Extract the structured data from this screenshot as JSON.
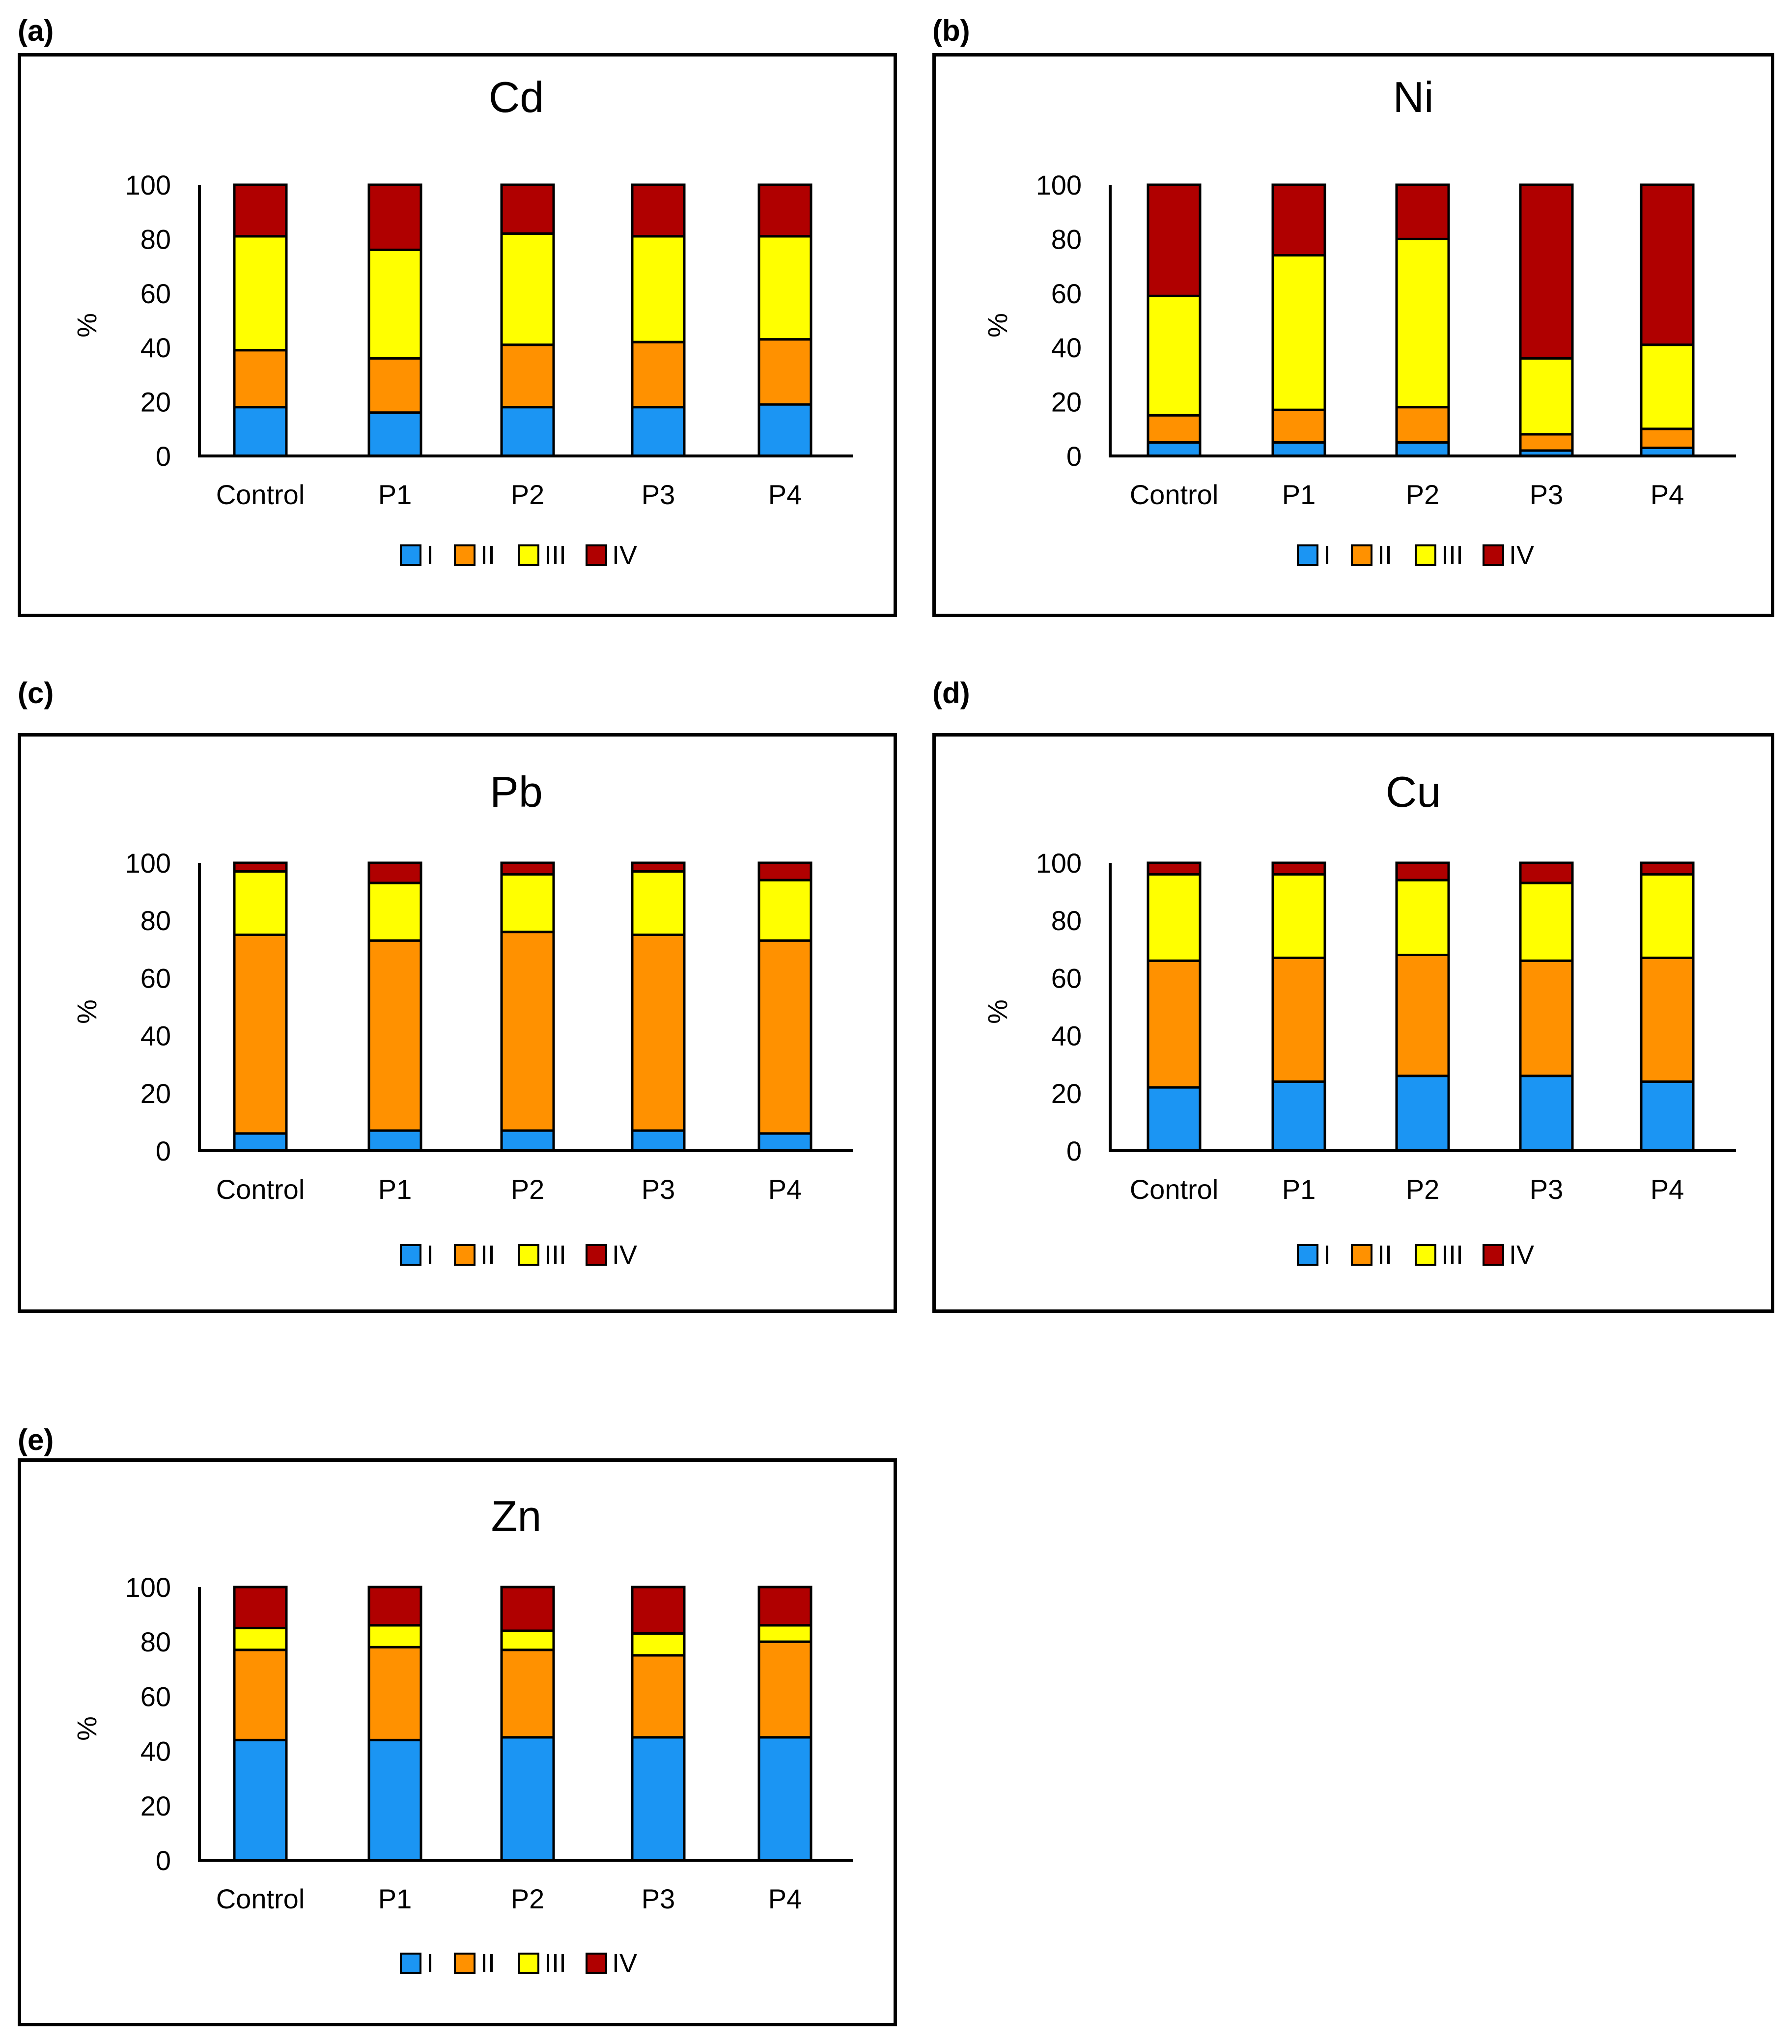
{
  "colors": {
    "I": "#1b95f3",
    "II": "#ff9100",
    "III": "#ffff00",
    "IV": "#b00000",
    "axis": "#000000"
  },
  "chart_data": [
    {
      "panel": "(a)",
      "type": "stacked-bar",
      "title": "Cd",
      "ylabel": "%",
      "ylim": [
        0,
        100
      ],
      "yticks": [
        0,
        20,
        40,
        60,
        80,
        100
      ],
      "categories": [
        "Control",
        "P1",
        "P2",
        "P3",
        "P4"
      ],
      "series": [
        {
          "name": "I",
          "values": [
            18,
            16,
            18,
            18,
            19
          ]
        },
        {
          "name": "II",
          "values": [
            21,
            20,
            23,
            24,
            24
          ]
        },
        {
          "name": "III",
          "values": [
            42,
            40,
            41,
            39,
            38
          ]
        },
        {
          "name": "IV",
          "values": [
            19,
            24,
            18,
            19,
            19
          ]
        }
      ]
    },
    {
      "panel": "(b)",
      "type": "stacked-bar",
      "title": "Ni",
      "ylabel": "%",
      "ylim": [
        0,
        100
      ],
      "yticks": [
        0,
        20,
        40,
        60,
        80,
        100
      ],
      "categories": [
        "Control",
        "P1",
        "P2",
        "P3",
        "P4"
      ],
      "series": [
        {
          "name": "I",
          "values": [
            5,
            5,
            5,
            2,
            3
          ]
        },
        {
          "name": "II",
          "values": [
            10,
            12,
            13,
            6,
            7
          ]
        },
        {
          "name": "III",
          "values": [
            44,
            57,
            62,
            28,
            31
          ]
        },
        {
          "name": "IV",
          "values": [
            41,
            26,
            20,
            64,
            59
          ]
        }
      ]
    },
    {
      "panel": "(c)",
      "type": "stacked-bar",
      "title": "Pb",
      "ylabel": "%",
      "ylim": [
        0,
        100
      ],
      "yticks": [
        0,
        20,
        40,
        60,
        80,
        100
      ],
      "categories": [
        "Control",
        "P1",
        "P2",
        "P3",
        "P4"
      ],
      "series": [
        {
          "name": "I",
          "values": [
            6,
            7,
            7,
            7,
            6
          ]
        },
        {
          "name": "II",
          "values": [
            69,
            66,
            69,
            68,
            67
          ]
        },
        {
          "name": "III",
          "values": [
            22,
            20,
            20,
            22,
            21
          ]
        },
        {
          "name": "IV",
          "values": [
            3,
            7,
            4,
            3,
            6
          ]
        }
      ]
    },
    {
      "panel": "(d)",
      "type": "stacked-bar",
      "title": "Cu",
      "ylabel": "%",
      "ylim": [
        0,
        100
      ],
      "yticks": [
        0,
        20,
        40,
        60,
        80,
        100
      ],
      "categories": [
        "Control",
        "P1",
        "P2",
        "P3",
        "P4"
      ],
      "series": [
        {
          "name": "I",
          "values": [
            22,
            24,
            26,
            26,
            24
          ]
        },
        {
          "name": "II",
          "values": [
            44,
            43,
            42,
            40,
            43
          ]
        },
        {
          "name": "III",
          "values": [
            30,
            29,
            26,
            27,
            29
          ]
        },
        {
          "name": "IV",
          "values": [
            4,
            4,
            6,
            7,
            4
          ]
        }
      ]
    },
    {
      "panel": "(e)",
      "type": "stacked-bar",
      "title": "Zn",
      "ylabel": "%",
      "ylim": [
        0,
        100
      ],
      "yticks": [
        0,
        20,
        40,
        60,
        80,
        100
      ],
      "categories": [
        "Control",
        "P1",
        "P2",
        "P3",
        "P4"
      ],
      "series": [
        {
          "name": "I",
          "values": [
            44,
            44,
            45,
            45,
            45
          ]
        },
        {
          "name": "II",
          "values": [
            33,
            34,
            32,
            30,
            35
          ]
        },
        {
          "name": "III",
          "values": [
            8,
            8,
            7,
            8,
            6
          ]
        },
        {
          "name": "IV",
          "values": [
            15,
            14,
            16,
            17,
            14
          ]
        }
      ]
    }
  ]
}
